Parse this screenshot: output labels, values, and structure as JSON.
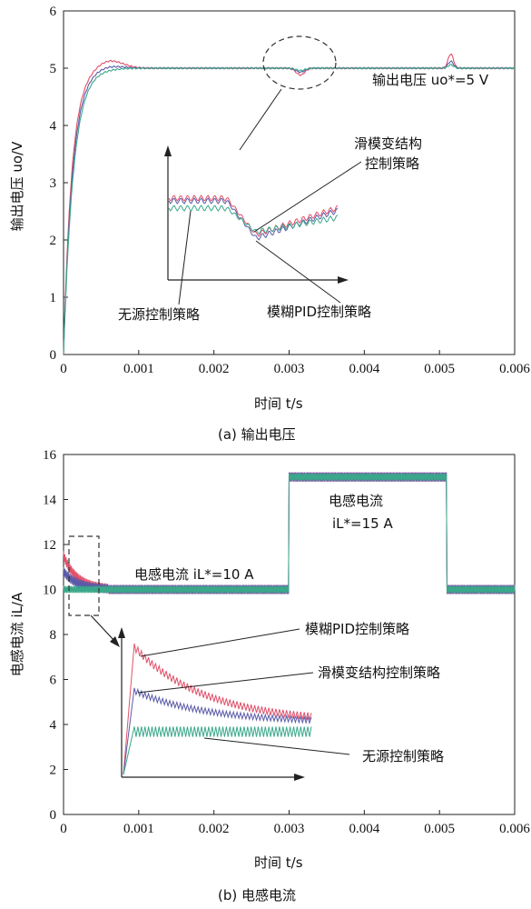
{
  "chart_data": [
    {
      "type": "line",
      "caption": "(a) 输出电压",
      "xlabel": "时间 t/s",
      "ylabel": "输出电压 uo/V",
      "xlim": [
        0,
        0.006
      ],
      "ylim": [
        0,
        6
      ],
      "x_ticks": [
        "0",
        "0.001",
        "0.002",
        "0.003",
        "0.004",
        "0.005",
        "0.006"
      ],
      "y_ticks": [
        "0",
        "1",
        "2",
        "3",
        "4",
        "5",
        "6"
      ],
      "reference_label": "输出电压 uo*=5 V",
      "reference_value": 5,
      "series": [
        {
          "name": "模糊PID控制策略",
          "color": "#e0506a",
          "overshoot": 5.15,
          "dip": 4.88,
          "bump": 5.25
        },
        {
          "name": "滑模变结构控制策略",
          "color": "#5a5aa8",
          "overshoot": 5.05,
          "dip": 4.93,
          "bump": 5.12
        },
        {
          "name": "无源控制策略",
          "color": "#3aa88a",
          "overshoot": 5.0,
          "dip": 4.96,
          "bump": 5.06
        }
      ],
      "annotations": [
        "滑模变结构",
        "控制策略",
        "无源控制策略",
        "模糊PID控制策略"
      ]
    },
    {
      "type": "line",
      "caption": "(b) 电感电流",
      "xlabel": "时间 t/s",
      "ylabel": "电感电流 iL/A",
      "xlim": [
        0,
        0.006
      ],
      "ylim": [
        0,
        16
      ],
      "x_ticks": [
        "0",
        "0.001",
        "0.002",
        "0.003",
        "0.004",
        "0.005",
        "0.006"
      ],
      "y_ticks": [
        "0",
        "2",
        "4",
        "6",
        "8",
        "10",
        "12",
        "14",
        "16"
      ],
      "reference_1_label": "电感电流 iL*=10 A",
      "reference_2_title": "电感电流",
      "reference_2_label": "iL*=15 A",
      "step_up_time": 0.003,
      "step_down_time": 0.0051,
      "levels": [
        10,
        15
      ],
      "series": [
        {
          "name": "模糊PID控制策略",
          "color": "#e0506a",
          "peak": 11.5
        },
        {
          "name": "滑模变结构控制策略",
          "color": "#5a5aa8",
          "peak": 10.8
        },
        {
          "name": "无源控制策略",
          "color": "#3aa88a",
          "peak": 10.0
        }
      ],
      "annotations": [
        "模糊PID控制策略",
        "滑模变结构控制策略",
        "无源控制策略"
      ]
    }
  ]
}
